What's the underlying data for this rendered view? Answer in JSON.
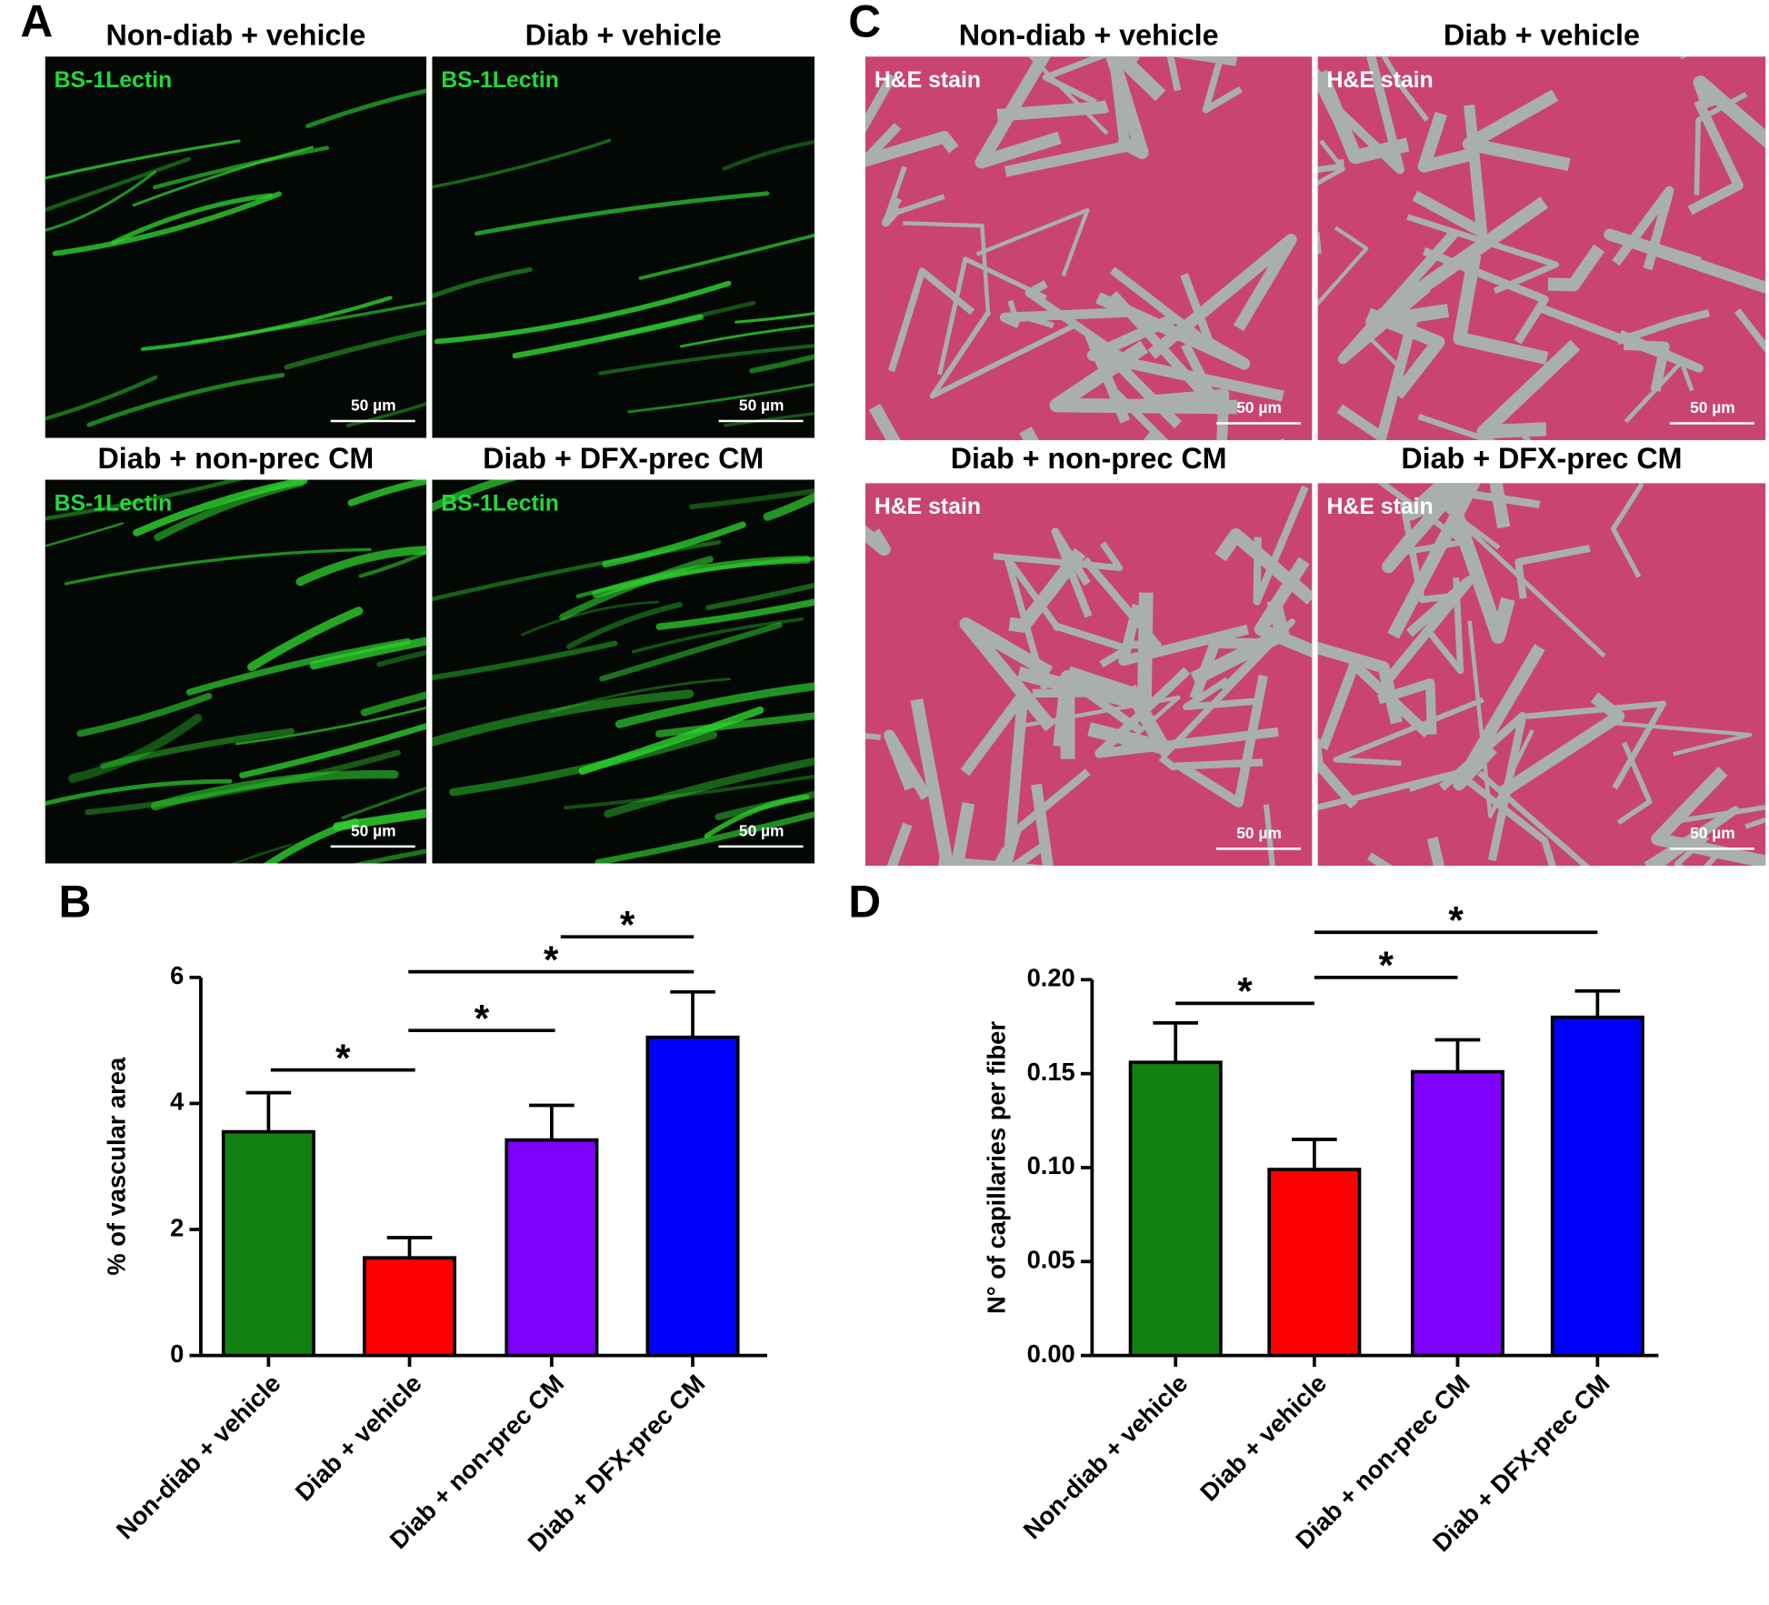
{
  "panels": {
    "A": {
      "letter": "A",
      "images": [
        {
          "title": "Non-diab + vehicle",
          "stain": "BS-1Lectin",
          "scale_bar": "50 µm"
        },
        {
          "title": "Diab + vehicle",
          "stain": "BS-1Lectin",
          "scale_bar": "50 µm"
        },
        {
          "title": "Diab + non-prec CM",
          "stain": "BS-1Lectin",
          "scale_bar": "50 µm"
        },
        {
          "title": "Diab + DFX-prec CM",
          "stain": "BS-1Lectin",
          "scale_bar": "50 µm"
        }
      ]
    },
    "C": {
      "letter": "C",
      "images": [
        {
          "title": "Non-diab + vehicle",
          "stain": "H&E stain",
          "scale_bar": "50 µm"
        },
        {
          "title": "Diab + vehicle",
          "stain": "H&E stain",
          "scale_bar": "50 µm"
        },
        {
          "title": "Diab + non-prec CM",
          "stain": "H&E stain",
          "scale_bar": "50 µm"
        },
        {
          "title": "Diab + DFX-prec CM",
          "stain": "H&E stain",
          "scale_bar": "50 µm"
        }
      ]
    }
  },
  "chart_data": [
    {
      "type": "bar",
      "panel_label": "B",
      "y_label": "% of vascular area",
      "categories": [
        "Non-diab + vehicle",
        "Diab + vehicle",
        "Diab + non-prec CM",
        "Diab + DFX-prec CM"
      ],
      "values": [
        3.55,
        1.55,
        3.42,
        5.05
      ],
      "errors": [
        0.62,
        0.32,
        0.55,
        0.72
      ],
      "colors": [
        "#138013",
        "#ff0000",
        "#8000ff",
        "#0000ff"
      ],
      "ylim": [
        0,
        6
      ],
      "yticks": [
        0,
        2,
        4,
        6
      ],
      "significance": [
        "*",
        "*",
        "*",
        "*"
      ]
    },
    {
      "type": "bar",
      "panel_label": "D",
      "y_label": "N° of capillaries per fiber",
      "categories": [
        "Non-diab + vehicle",
        "Diab + vehicle",
        "Diab + non-prec CM",
        "Diab + DFX-prec CM"
      ],
      "values": [
        0.156,
        0.099,
        0.151,
        0.18
      ],
      "errors": [
        0.021,
        0.016,
        0.017,
        0.014
      ],
      "colors": [
        "#138013",
        "#ff0000",
        "#8000ff",
        "#0000ff"
      ],
      "ylim": [
        0,
        0.2
      ],
      "yticks": [
        {
          "value": 0,
          "label": "0.00"
        },
        {
          "value": 0.05,
          "label": "0.05"
        },
        {
          "value": 0.1,
          "label": "0.10"
        },
        {
          "value": 0.15,
          "label": "0.15"
        },
        {
          "value": 0.2,
          "label": "0.20"
        }
      ],
      "significance": [
        "*",
        "*",
        "*"
      ]
    }
  ]
}
